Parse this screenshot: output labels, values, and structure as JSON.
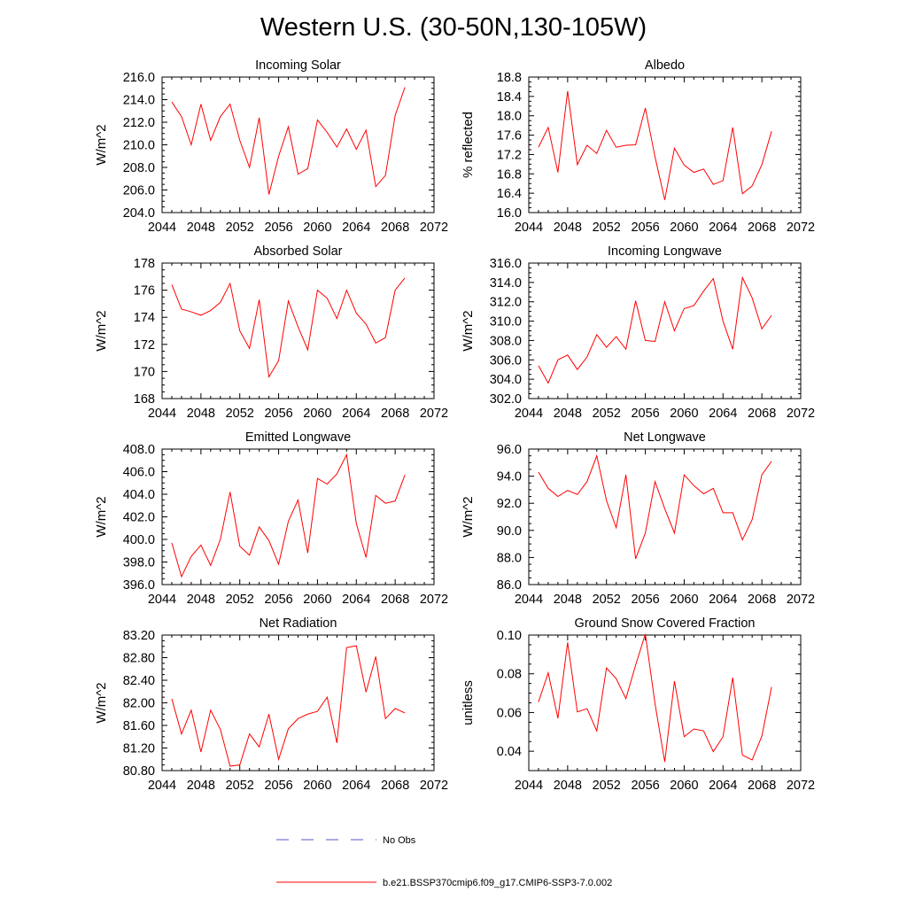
{
  "title": "Western U.S. (30-50N,130-105W)",
  "colors": {
    "model": "#ff0000",
    "obs": "#5555cc",
    "axis": "#000000"
  },
  "legend": {
    "obs_label": "No Obs",
    "model_label": "b.e21.BSSP370cmip6.f09_g17.CMIP6-SSP3-7.0.002"
  },
  "chart_data": [
    {
      "type": "line",
      "title": "Incoming Solar",
      "ylabel": "W/m^2",
      "xlim": [
        2044,
        2072
      ],
      "ylim": [
        204,
        216
      ],
      "xticks": [
        "2044",
        "2048",
        "2052",
        "2056",
        "2060",
        "2064",
        "2068",
        "2072"
      ],
      "yticks": [
        "204.0",
        "206.0",
        "208.0",
        "210.0",
        "212.0",
        "214.0",
        "216.0"
      ],
      "x": [
        2045,
        2046,
        2047,
        2048,
        2049,
        2050,
        2051,
        2052,
        2053,
        2054,
        2055,
        2056,
        2057,
        2058,
        2059,
        2060,
        2061,
        2062,
        2063,
        2064,
        2065,
        2066,
        2067,
        2068,
        2069
      ],
      "series": [
        {
          "values": [
            213.8,
            212.5,
            210.0,
            213.6,
            210.4,
            212.5,
            213.6,
            210.4,
            208.0,
            212.4,
            205.6,
            209.0,
            211.6,
            207.4,
            207.9,
            212.2,
            211.1,
            209.8,
            211.4,
            209.6,
            211.3,
            206.3,
            207.3,
            212.6,
            215.1
          ]
        }
      ]
    },
    {
      "type": "line",
      "title": "Albedo",
      "ylabel": "% reflected",
      "xlim": [
        2044,
        2072
      ],
      "ylim": [
        16.0,
        18.8
      ],
      "xticks": [
        "2044",
        "2048",
        "2052",
        "2056",
        "2060",
        "2064",
        "2068",
        "2072"
      ],
      "yticks": [
        "16.0",
        "16.4",
        "16.8",
        "17.2",
        "17.6",
        "18.0",
        "18.4",
        "18.8"
      ],
      "x": [
        2045,
        2046,
        2047,
        2048,
        2049,
        2050,
        2051,
        2052,
        2053,
        2054,
        2055,
        2056,
        2057,
        2058,
        2059,
        2060,
        2061,
        2062,
        2063,
        2064,
        2065,
        2066,
        2067,
        2068,
        2069
      ],
      "series": [
        {
          "values": [
            17.35,
            17.76,
            16.83,
            18.51,
            16.99,
            17.39,
            17.22,
            17.7,
            17.35,
            17.39,
            17.4,
            18.16,
            17.15,
            16.26,
            17.33,
            16.98,
            16.83,
            16.9,
            16.58,
            16.66,
            17.76,
            16.39,
            16.55,
            16.99,
            17.68
          ]
        }
      ]
    },
    {
      "type": "line",
      "title": "Absorbed Solar",
      "ylabel": "W/m^2",
      "xlim": [
        2044,
        2072
      ],
      "ylim": [
        168,
        178
      ],
      "xticks": [
        "2044",
        "2048",
        "2052",
        "2056",
        "2060",
        "2064",
        "2068",
        "2072"
      ],
      "yticks": [
        "168",
        "170",
        "172",
        "174",
        "176",
        "178"
      ],
      "x": [
        2045,
        2046,
        2047,
        2048,
        2049,
        2050,
        2051,
        2052,
        2053,
        2054,
        2055,
        2056,
        2057,
        2058,
        2059,
        2060,
        2061,
        2062,
        2063,
        2064,
        2065,
        2066,
        2067,
        2068,
        2069
      ],
      "series": [
        {
          "values": [
            176.4,
            174.6,
            174.4,
            174.15,
            174.5,
            175.1,
            176.5,
            173.0,
            171.7,
            175.3,
            169.6,
            170.8,
            175.2,
            173.3,
            171.6,
            176.0,
            175.4,
            173.9,
            176.0,
            174.3,
            173.5,
            172.1,
            172.5,
            176.0,
            176.9
          ]
        }
      ]
    },
    {
      "type": "line",
      "title": "Incoming Longwave",
      "ylabel": "W/m^2",
      "xlim": [
        2044,
        2072
      ],
      "ylim": [
        302,
        316
      ],
      "xticks": [
        "2044",
        "2048",
        "2052",
        "2056",
        "2060",
        "2064",
        "2068",
        "2072"
      ],
      "yticks": [
        "302.0",
        "304.0",
        "306.0",
        "308.0",
        "310.0",
        "312.0",
        "314.0",
        "316.0"
      ],
      "x": [
        2045,
        2046,
        2047,
        2048,
        2049,
        2050,
        2051,
        2052,
        2053,
        2054,
        2055,
        2056,
        2057,
        2058,
        2059,
        2060,
        2061,
        2062,
        2063,
        2064,
        2065,
        2066,
        2067,
        2068,
        2069
      ],
      "series": [
        {
          "values": [
            305.4,
            303.6,
            306.0,
            306.5,
            305.0,
            306.3,
            308.6,
            307.3,
            308.4,
            307.1,
            312.1,
            308.0,
            307.9,
            312.0,
            309.0,
            311.3,
            311.6,
            313.1,
            314.4,
            310.0,
            307.1,
            314.5,
            312.4,
            309.2,
            310.6
          ]
        }
      ]
    },
    {
      "type": "line",
      "title": "Emitted Longwave",
      "ylabel": "W/m^2",
      "xlim": [
        2044,
        2072
      ],
      "ylim": [
        396,
        408
      ],
      "xticks": [
        "2044",
        "2048",
        "2052",
        "2056",
        "2060",
        "2064",
        "2068",
        "2072"
      ],
      "yticks": [
        "396.0",
        "398.0",
        "400.0",
        "402.0",
        "404.0",
        "406.0",
        "408.0"
      ],
      "x": [
        2045,
        2046,
        2047,
        2048,
        2049,
        2050,
        2051,
        2052,
        2053,
        2054,
        2055,
        2056,
        2057,
        2058,
        2059,
        2060,
        2061,
        2062,
        2063,
        2064,
        2065,
        2066,
        2067,
        2068,
        2069
      ],
      "series": [
        {
          "values": [
            399.7,
            396.7,
            398.5,
            399.5,
            397.7,
            400.0,
            404.2,
            399.4,
            398.6,
            401.1,
            399.9,
            397.8,
            401.6,
            403.5,
            398.8,
            405.4,
            404.9,
            405.8,
            407.5,
            401.4,
            398.4,
            403.9,
            403.2,
            403.4,
            405.7
          ]
        }
      ]
    },
    {
      "type": "line",
      "title": "Net Longwave",
      "ylabel": "W/m^2",
      "xlim": [
        2044,
        2072
      ],
      "ylim": [
        86,
        96
      ],
      "xticks": [
        "2044",
        "2048",
        "2052",
        "2056",
        "2060",
        "2064",
        "2068",
        "2072"
      ],
      "yticks": [
        "86.0",
        "88.0",
        "90.0",
        "92.0",
        "94.0",
        "96.0"
      ],
      "x": [
        2045,
        2046,
        2047,
        2048,
        2049,
        2050,
        2051,
        2052,
        2053,
        2054,
        2055,
        2056,
        2057,
        2058,
        2059,
        2060,
        2061,
        2062,
        2063,
        2064,
        2065,
        2066,
        2067,
        2068,
        2069
      ],
      "series": [
        {
          "values": [
            94.3,
            93.1,
            92.5,
            92.95,
            92.65,
            93.6,
            95.5,
            92.2,
            90.2,
            94.1,
            87.9,
            89.8,
            93.6,
            91.6,
            89.8,
            94.1,
            93.3,
            92.7,
            93.1,
            91.3,
            91.3,
            89.3,
            90.8,
            94.1,
            95.1
          ]
        }
      ]
    },
    {
      "type": "line",
      "title": "Net Radiation",
      "ylabel": "W/m^2",
      "xlim": [
        2044,
        2072
      ],
      "ylim": [
        80.8,
        83.2
      ],
      "xticks": [
        "2044",
        "2048",
        "2052",
        "2056",
        "2060",
        "2064",
        "2068",
        "2072"
      ],
      "yticks": [
        "80.80",
        "81.20",
        "81.60",
        "82.00",
        "82.40",
        "82.80",
        "83.20"
      ],
      "x": [
        2045,
        2046,
        2047,
        2048,
        2049,
        2050,
        2051,
        2052,
        2053,
        2054,
        2055,
        2056,
        2057,
        2058,
        2059,
        2060,
        2061,
        2062,
        2063,
        2064,
        2065,
        2066,
        2067,
        2068,
        2069
      ],
      "series": [
        {
          "values": [
            82.07,
            81.45,
            81.87,
            81.13,
            81.87,
            81.53,
            80.88,
            80.9,
            81.45,
            81.22,
            81.8,
            81.0,
            81.54,
            81.72,
            81.8,
            81.85,
            82.1,
            81.29,
            82.98,
            83.01,
            82.19,
            82.82,
            81.72,
            81.9,
            81.82
          ]
        }
      ]
    },
    {
      "type": "line",
      "title": "Ground Snow Covered Fraction",
      "ylabel": "unitless",
      "xlim": [
        2044,
        2072
      ],
      "ylim": [
        0.03,
        0.1
      ],
      "xticks": [
        "2044",
        "2048",
        "2052",
        "2056",
        "2060",
        "2064",
        "2068",
        "2072"
      ],
      "yticks": [
        "0.04",
        "0.06",
        "0.08",
        "0.10"
      ],
      "x": [
        2045,
        2046,
        2047,
        2048,
        2049,
        2050,
        2051,
        2052,
        2053,
        2054,
        2055,
        2056,
        2057,
        2058,
        2059,
        2060,
        2061,
        2062,
        2063,
        2064,
        2065,
        2066,
        2067,
        2068,
        2069
      ],
      "series": [
        {
          "values": [
            0.0655,
            0.0805,
            0.057,
            0.0962,
            0.0603,
            0.062,
            0.0505,
            0.083,
            0.0775,
            0.0672,
            0.0845,
            0.1005,
            0.0645,
            0.0345,
            0.0762,
            0.0475,
            0.0515,
            0.0505,
            0.0398,
            0.0475,
            0.078,
            0.038,
            0.0355,
            0.0478,
            0.0732
          ]
        }
      ]
    }
  ]
}
